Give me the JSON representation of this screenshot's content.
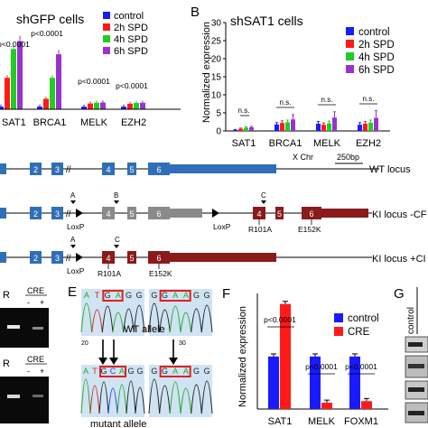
{
  "panelA": {
    "title": "shGFP cells",
    "legend": [
      "control",
      "2h SPD",
      "4h SPD",
      "6h SPD"
    ],
    "pvals": [
      "p<0.0001",
      "p<0.0001",
      "p<0.0001",
      "p<0.0001"
    ],
    "xticks": [
      "SAT1",
      "BRCA1",
      "MELK",
      "EZH2"
    ]
  },
  "panelB": {
    "letter": "B",
    "title": "shSAT1 cells",
    "ylabel": "Normalized expression",
    "yticks": [
      "0",
      "5",
      "10",
      "15",
      "20",
      "25",
      "30"
    ],
    "legend": [
      "control",
      "2h SPD",
      "4h SPD",
      "6h SPD"
    ],
    "ns": "n.s.",
    "xticks": [
      "SAT1",
      "BRCA1",
      "MELK",
      "EZH2"
    ]
  },
  "loci": {
    "chr": "X Chr",
    "scale": "250bp",
    "wt": {
      "label": "WT locus",
      "exons": [
        "2",
        "3",
        "4",
        "5",
        "6"
      ]
    },
    "ki_cre_minus": {
      "label": "KI locus -CF",
      "exons": [
        "2",
        "3",
        "4",
        "5",
        "6",
        "4",
        "5",
        "6"
      ],
      "marks": [
        "A",
        "B",
        "C"
      ],
      "loxp": [
        "LoxP",
        "LoxP"
      ],
      "muts": [
        "R101A",
        "E152K"
      ]
    },
    "ki_cre_plus": {
      "label": "KI locus +CI",
      "exons": [
        "2",
        "3",
        "4",
        "5",
        "6"
      ],
      "marks": [
        "A",
        "C"
      ],
      "loxp": [
        "LoxP"
      ],
      "muts": [
        "R101A",
        "E152K"
      ]
    }
  },
  "panelD": {
    "r1": "R",
    "r2": "R",
    "cre1": "CRE",
    "cre2": "CRE",
    "minus": "-",
    "plus": "+"
  },
  "panelE": {
    "letter": "E",
    "wt_label": "WT allele",
    "mut_label": "mutant allele",
    "top_left_seq": [
      "A",
      "T",
      "G",
      "A",
      "G",
      "G"
    ],
    "top_right_seq": [
      "G",
      "G",
      "A",
      "A",
      "G",
      "G"
    ],
    "bottom_left_seq": [
      "A",
      "T",
      "G",
      "C",
      "A",
      "G",
      "G"
    ],
    "bottom_right_seq": [
      "G",
      "G",
      "A",
      "A",
      "G",
      "G"
    ],
    "tick_a": "20",
    "tick_b": "30"
  },
  "panelF": {
    "letter": "F",
    "ylabel": "Normalized expression",
    "pvals": [
      "p<0.0001",
      "p<0.0001",
      "p<0.0001"
    ],
    "legend": [
      "control",
      "CRE"
    ]
  },
  "panelG": {
    "letter": "G",
    "col": "control"
  },
  "colors": {
    "control": "#1a1aff",
    "s2h": "#ff1a1a",
    "s4h": "#22cc22",
    "s6h": "#9933cc",
    "exon_blue": "#2f6fb8",
    "exon_gray": "#8a8a8a",
    "exon_red": "#8b1a1a"
  },
  "chart_data": [
    {
      "type": "bar",
      "title": "shGFP cells",
      "categories": [
        "SAT1",
        "BRCA1",
        "MELK",
        "EZH2"
      ],
      "series": [
        {
          "name": "control",
          "values": [
            1,
            1,
            1,
            1
          ]
        },
        {
          "name": "2h SPD",
          "values": [
            12,
            4,
            2.2,
            2.1
          ]
        },
        {
          "name": "4h SPD",
          "values": [
            23,
            12,
            2.5,
            2.4
          ]
        },
        {
          "name": "6h SPD",
          "values": [
            26,
            21,
            2.6,
            2.5
          ]
        }
      ]
    },
    {
      "type": "bar",
      "title": "shSAT1 cells",
      "ylabel": "Normalized expression",
      "ylim": [
        0,
        30
      ],
      "categories": [
        "SAT1",
        "BRCA1",
        "MELK",
        "EZH2"
      ],
      "series": [
        {
          "name": "control",
          "values": [
            0.3,
            1.8,
            2.0,
            1.7
          ]
        },
        {
          "name": "2h SPD",
          "values": [
            0.6,
            2.2,
            1.7,
            2.0
          ]
        },
        {
          "name": "4h SPD",
          "values": [
            0.9,
            2.4,
            2.1,
            2.3
          ]
        },
        {
          "name": "6h SPD",
          "values": [
            1.0,
            3.2,
            3.7,
            3.6
          ]
        }
      ],
      "errors": [
        [
          0.1,
          0.5,
          0.6,
          0.6
        ],
        [
          0.2,
          0.6,
          0.5,
          0.6
        ],
        [
          0.3,
          0.6,
          0.6,
          0.7
        ],
        [
          0.3,
          1.3,
          1.6,
          2.0
        ]
      ]
    },
    {
      "type": "bar",
      "ylabel": "Normalized expression",
      "categories": [
        "SAT1",
        "MELK",
        "FOXM1"
      ],
      "series": [
        {
          "name": "control",
          "values": [
            1.0,
            1.0,
            1.0
          ]
        },
        {
          "name": "CRE",
          "values": [
            2.0,
            0.12,
            0.15
          ]
        }
      ]
    }
  ]
}
